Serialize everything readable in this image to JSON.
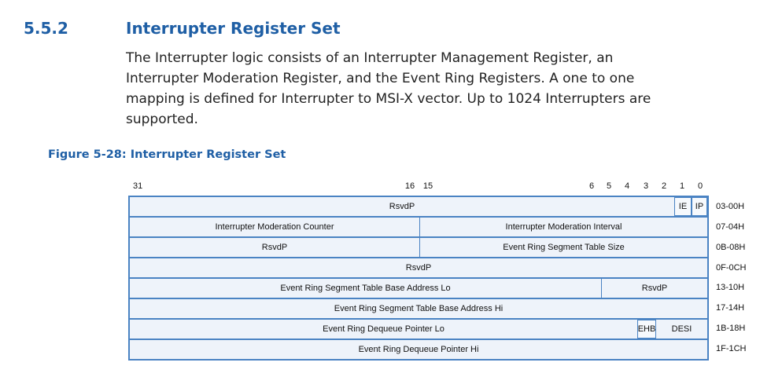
{
  "section": {
    "number": "5.5.2",
    "title": "Interrupter Register Set",
    "paragraph_lines": [
      "The Interrupter logic consists of an Interrupter Management Register, an",
      "Interrupter Moderation Register, and the Event Ring Registers. A one to one",
      "mapping is defined for Interrupter to MSI-X vector. Up to 1024 Interrupters are",
      "supported."
    ]
  },
  "figure": {
    "caption": "Figure 5-28: Interrupter Register Set",
    "bit_numbers": {
      "b31": "31",
      "b16": "16",
      "b15": "15",
      "b6": "6",
      "b5": "5",
      "b4": "4",
      "b3": "3",
      "b2": "2",
      "b1": "1",
      "b0": "0"
    },
    "rows": [
      {
        "fields": [
          "RsvdP",
          "IE",
          "IP"
        ],
        "offset": "03-00H"
      },
      {
        "fields": [
          "Interrupter Moderation Counter",
          "Interrupter Moderation Interval"
        ],
        "offset": "07-04H"
      },
      {
        "fields": [
          "RsvdP",
          "Event Ring Segment Table Size"
        ],
        "offset": "0B-08H"
      },
      {
        "fields": [
          "RsvdP"
        ],
        "offset": "0F-0CH"
      },
      {
        "fields": [
          "Event Ring Segment Table Base Address Lo",
          "RsvdP"
        ],
        "offset": "13-10H"
      },
      {
        "fields": [
          "Event Ring Segment Table Base Address Hi"
        ],
        "offset": "17-14H"
      },
      {
        "fields": [
          "Event Ring Dequeue Pointer Lo",
          "EHB",
          "DESI"
        ],
        "offset": "1B-18H"
      },
      {
        "fields": [
          "Event Ring Dequeue Pointer Hi"
        ],
        "offset": "1F-1CH"
      }
    ]
  }
}
